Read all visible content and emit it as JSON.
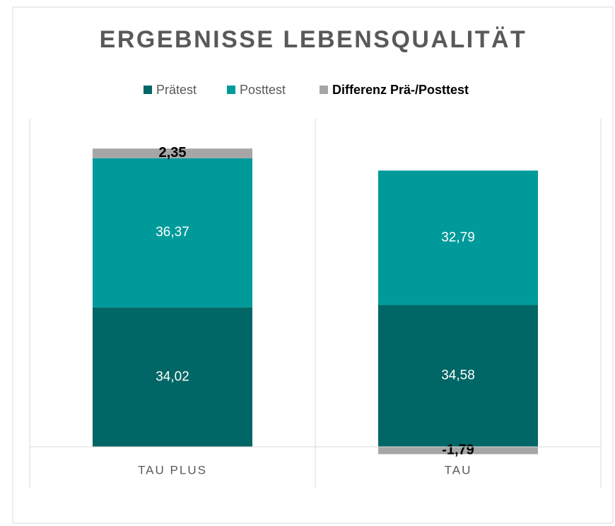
{
  "chart_data": {
    "type": "bar",
    "stacked": true,
    "title": "ERGEBNISSE LEBENSQUALITÄT",
    "categories": [
      "TAU PLUS",
      "TAU"
    ],
    "series": [
      {
        "name": "Prätest",
        "color": "#006766",
        "values": [
          34.02,
          34.58
        ],
        "value_labels": [
          "34,02",
          "34,58"
        ]
      },
      {
        "name": "Posttest",
        "color": "#009a9a",
        "values": [
          36.37,
          32.79
        ],
        "value_labels": [
          "36,37",
          "32,79"
        ]
      },
      {
        "name": "Differenz Prä-/Posttest",
        "color": "#a6a6a6",
        "values": [
          2.35,
          -1.79
        ],
        "value_labels": [
          "2,35",
          "-1,79"
        ]
      }
    ],
    "ylim": [
      -10,
      80
    ],
    "legend": "top"
  }
}
